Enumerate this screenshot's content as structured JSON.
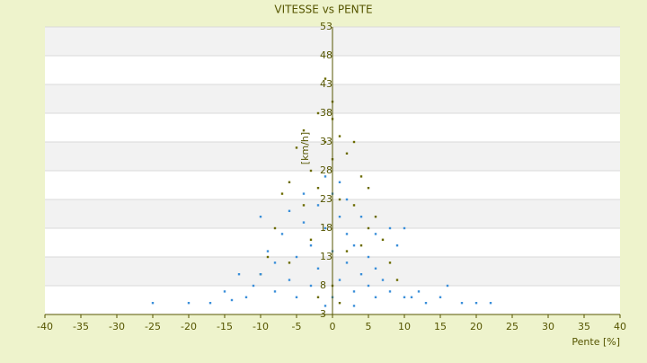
{
  "chart_data": {
    "type": "scatter",
    "title": "VITESSE vs PENTE",
    "xlabel": "Pente [%]",
    "ylabel": "[km/h]",
    "xlim": [
      -40,
      40
    ],
    "xticks": [
      -40,
      -35,
      -30,
      -25,
      -20,
      -15,
      -10,
      -5,
      0,
      5,
      10,
      15,
      20,
      25,
      30,
      35,
      40
    ],
    "ylim": [
      3,
      53
    ],
    "yticks": [
      3,
      8,
      13,
      18,
      23,
      28,
      33,
      38,
      43,
      48,
      53
    ],
    "grid": true,
    "series": [
      {
        "color": "#6b6b00",
        "x": [
          -5,
          -4,
          -3,
          -2,
          -1,
          0,
          0,
          1,
          2,
          3,
          4,
          5,
          -6,
          -7,
          -8,
          -9,
          -4,
          -2,
          1,
          3,
          6,
          7,
          8,
          -10,
          -3,
          2,
          0,
          -1,
          4,
          9,
          -6,
          5,
          0,
          -2,
          1
        ],
        "values": [
          32,
          35,
          28,
          38,
          44,
          40,
          30,
          34,
          31,
          33,
          27,
          25,
          26,
          24,
          18,
          13,
          22,
          25,
          23,
          22,
          20,
          16,
          12,
          10,
          16,
          14,
          37,
          33,
          15,
          9,
          12,
          18,
          8,
          6,
          5
        ]
      },
      {
        "color": "#3a8fd9",
        "x": [
          -25,
          -20,
          -17,
          -14,
          -12,
          -11,
          -10,
          -10,
          -9,
          -8,
          -8,
          -7,
          -6,
          -6,
          -5,
          -5,
          -4,
          -4,
          -3,
          -3,
          -2,
          -2,
          -1,
          -1,
          0,
          0,
          0,
          1,
          1,
          1,
          2,
          2,
          2,
          3,
          3,
          4,
          4,
          5,
          5,
          6,
          6,
          7,
          8,
          9,
          10,
          11,
          12,
          13,
          15,
          16,
          18,
          20,
          22,
          -15,
          -13,
          8,
          10,
          -1,
          3,
          6
        ],
        "values": [
          5,
          5,
          5,
          5.5,
          6,
          8,
          10,
          20,
          14,
          7,
          12,
          17,
          9,
          21,
          6,
          13,
          19,
          24,
          8,
          15,
          22,
          11,
          18,
          27,
          6,
          14,
          24,
          9,
          20,
          26,
          12,
          17,
          23,
          7,
          15,
          10,
          20,
          8,
          13,
          6,
          11,
          9,
          7,
          15,
          6,
          6,
          7,
          5,
          6,
          8,
          5,
          5,
          5,
          7,
          10,
          18,
          18,
          4.5,
          4.5,
          17
        ]
      }
    ]
  }
}
